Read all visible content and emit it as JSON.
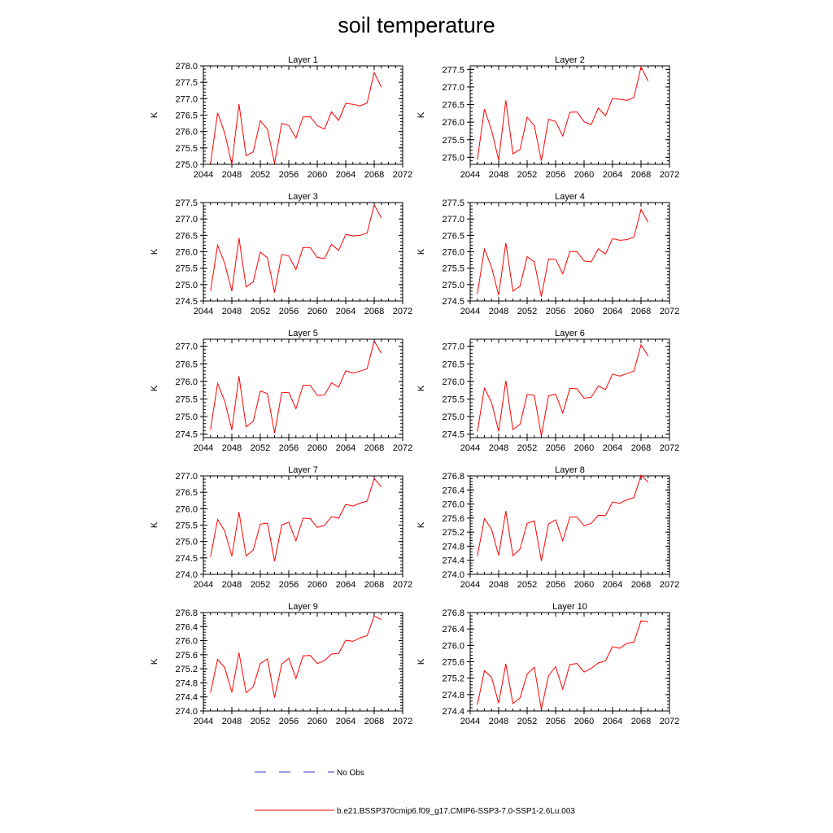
{
  "title": "soil temperature",
  "colors": {
    "series": "#ff0000",
    "obs": "#3b3bbf",
    "axis": "#000000"
  },
  "legend": {
    "obs_label": "No Obs",
    "model_label": "b.e21.BSSP370cmip6.f09_g17.CMIP6-SSP3-7.0-SSP1-2.6Lu.003"
  },
  "chart_data": [
    {
      "type": "line",
      "title": "Layer 1",
      "ylabel": "K",
      "xlim": [
        2044,
        2072
      ],
      "ylim": [
        275.0,
        278.0
      ],
      "x_ticks": [
        2044,
        2048,
        2052,
        2056,
        2060,
        2064,
        2068,
        2072
      ],
      "x_tick_labels": [
        "2044",
        "2048",
        "2052",
        "2056",
        "2060",
        "2064",
        "2068",
        "2072"
      ],
      "y_ticks": [
        275.0,
        275.5,
        276.0,
        276.5,
        277.0,
        277.5,
        278.0
      ],
      "y_tick_labels": [
        "275.0",
        "275.5",
        "276.0",
        "276.5",
        "277.0",
        "277.5",
        "278.0"
      ],
      "series": [
        {
          "x": [
            2045,
            2046,
            2047,
            2048,
            2049,
            2050,
            2051,
            2052,
            2053,
            2054,
            2055,
            2056,
            2057,
            2058,
            2059,
            2060,
            2061,
            2062,
            2063,
            2064,
            2065,
            2066,
            2067,
            2068,
            2069
          ],
          "values": [
            275.02,
            276.57,
            275.95,
            275.0,
            276.84,
            275.26,
            275.38,
            276.33,
            276.07,
            275.03,
            276.25,
            276.18,
            275.8,
            276.44,
            276.45,
            276.18,
            276.07,
            276.6,
            276.34,
            276.86,
            276.83,
            276.78,
            276.87,
            277.8,
            277.35
          ]
        }
      ]
    },
    {
      "type": "line",
      "title": "Layer 2",
      "ylabel": "K",
      "xlim": [
        2044,
        2072
      ],
      "ylim": [
        274.8,
        277.6
      ],
      "x_ticks": [
        2044,
        2048,
        2052,
        2056,
        2060,
        2064,
        2068,
        2072
      ],
      "x_tick_labels": [
        "2044",
        "2048",
        "2052",
        "2056",
        "2060",
        "2064",
        "2068",
        "2072"
      ],
      "y_ticks": [
        275.0,
        275.5,
        276.0,
        276.5,
        277.0,
        277.5
      ],
      "y_tick_labels": [
        "275.0",
        "275.5",
        "276.0",
        "276.5",
        "277.0",
        "277.5"
      ],
      "series": [
        {
          "x": [
            2045,
            2046,
            2047,
            2048,
            2049,
            2050,
            2051,
            2052,
            2053,
            2054,
            2055,
            2056,
            2057,
            2058,
            2059,
            2060,
            2061,
            2062,
            2063,
            2064,
            2065,
            2066,
            2067,
            2068,
            2069
          ],
          "values": [
            274.93,
            276.37,
            275.77,
            274.92,
            276.62,
            275.1,
            275.22,
            276.14,
            275.9,
            274.9,
            276.08,
            276.02,
            275.6,
            276.28,
            276.29,
            276.01,
            275.93,
            276.4,
            276.18,
            276.68,
            276.65,
            276.62,
            276.7,
            277.57,
            277.17
          ]
        }
      ]
    },
    {
      "type": "line",
      "title": "Layer 3",
      "ylabel": "K",
      "xlim": [
        2044,
        2072
      ],
      "ylim": [
        274.5,
        277.5
      ],
      "x_ticks": [
        2044,
        2048,
        2052,
        2056,
        2060,
        2064,
        2068,
        2072
      ],
      "x_tick_labels": [
        "2044",
        "2048",
        "2052",
        "2056",
        "2060",
        "2064",
        "2068",
        "2072"
      ],
      "y_ticks": [
        274.5,
        275.0,
        275.5,
        276.0,
        276.5,
        277.0,
        277.5
      ],
      "y_tick_labels": [
        "274.5",
        "275.0",
        "275.5",
        "276.0",
        "276.5",
        "277.0",
        "277.5"
      ],
      "series": [
        {
          "x": [
            2045,
            2046,
            2047,
            2048,
            2049,
            2050,
            2051,
            2052,
            2053,
            2054,
            2055,
            2056,
            2057,
            2058,
            2059,
            2060,
            2061,
            2062,
            2063,
            2064,
            2065,
            2066,
            2067,
            2068,
            2069
          ],
          "values": [
            274.8,
            276.2,
            275.64,
            274.8,
            276.42,
            274.93,
            275.08,
            275.99,
            275.81,
            274.76,
            275.92,
            275.87,
            275.46,
            276.13,
            276.13,
            275.83,
            275.79,
            276.23,
            276.04,
            276.53,
            276.48,
            276.5,
            276.57,
            277.43,
            277.03
          ]
        }
      ]
    },
    {
      "type": "line",
      "title": "Layer 4",
      "ylabel": "K",
      "xlim": [
        2044,
        2072
      ],
      "ylim": [
        274.5,
        277.5
      ],
      "x_ticks": [
        2044,
        2048,
        2052,
        2056,
        2060,
        2064,
        2068,
        2072
      ],
      "x_tick_labels": [
        "2044",
        "2048",
        "2052",
        "2056",
        "2060",
        "2064",
        "2068",
        "2072"
      ],
      "y_ticks": [
        274.5,
        275.0,
        275.5,
        276.0,
        276.5,
        277.0,
        277.5
      ],
      "y_tick_labels": [
        "274.5",
        "275.0",
        "275.5",
        "276.0",
        "276.5",
        "277.0",
        "277.5"
      ],
      "series": [
        {
          "x": [
            2045,
            2046,
            2047,
            2048,
            2049,
            2050,
            2051,
            2052,
            2053,
            2054,
            2055,
            2056,
            2057,
            2058,
            2059,
            2060,
            2061,
            2062,
            2063,
            2064,
            2065,
            2066,
            2067,
            2068,
            2069
          ],
          "values": [
            274.72,
            276.08,
            275.53,
            274.68,
            276.27,
            274.8,
            274.95,
            275.85,
            275.69,
            274.63,
            275.78,
            275.77,
            275.33,
            276.01,
            276.0,
            275.72,
            275.69,
            276.09,
            275.93,
            276.4,
            276.35,
            276.37,
            276.45,
            277.29,
            276.9
          ]
        }
      ]
    },
    {
      "type": "line",
      "title": "Layer 5",
      "ylabel": "K",
      "xlim": [
        2044,
        2072
      ],
      "ylim": [
        274.4,
        277.2
      ],
      "x_ticks": [
        2044,
        2048,
        2052,
        2056,
        2060,
        2064,
        2068,
        2072
      ],
      "x_tick_labels": [
        "2044",
        "2048",
        "2052",
        "2056",
        "2060",
        "2064",
        "2068",
        "2072"
      ],
      "y_ticks": [
        274.5,
        275.0,
        275.5,
        276.0,
        276.5,
        277.0
      ],
      "y_tick_labels": [
        "274.5",
        "275.0",
        "275.5",
        "276.0",
        "276.5",
        "277.0"
      ],
      "series": [
        {
          "x": [
            2045,
            2046,
            2047,
            2048,
            2049,
            2050,
            2051,
            2052,
            2053,
            2054,
            2055,
            2056,
            2057,
            2058,
            2059,
            2060,
            2061,
            2062,
            2063,
            2064,
            2065,
            2066,
            2067,
            2068,
            2069
          ],
          "values": [
            274.63,
            275.94,
            275.43,
            274.62,
            276.15,
            274.71,
            274.86,
            275.73,
            275.65,
            274.53,
            275.68,
            275.69,
            275.22,
            275.89,
            275.89,
            275.6,
            275.61,
            275.96,
            275.84,
            276.3,
            276.24,
            276.29,
            276.36,
            277.15,
            276.8
          ]
        }
      ]
    },
    {
      "type": "line",
      "title": "Layer 6",
      "ylabel": "K",
      "xlim": [
        2044,
        2072
      ],
      "ylim": [
        274.4,
        277.2
      ],
      "x_ticks": [
        2044,
        2048,
        2052,
        2056,
        2060,
        2064,
        2068,
        2072
      ],
      "x_tick_labels": [
        "2044",
        "2048",
        "2052",
        "2056",
        "2060",
        "2064",
        "2068",
        "2072"
      ],
      "y_ticks": [
        274.5,
        275.0,
        275.5,
        276.0,
        276.5,
        277.0
      ],
      "y_tick_labels": [
        "274.5",
        "275.0",
        "275.5",
        "276.0",
        "276.5",
        "277.0"
      ],
      "series": [
        {
          "x": [
            2045,
            2046,
            2047,
            2048,
            2049,
            2050,
            2051,
            2052,
            2053,
            2054,
            2055,
            2056,
            2057,
            2058,
            2059,
            2060,
            2061,
            2062,
            2063,
            2064,
            2065,
            2066,
            2067,
            2068,
            2069
          ],
          "values": [
            274.57,
            275.81,
            275.4,
            274.58,
            276.02,
            274.63,
            274.78,
            275.63,
            275.6,
            274.45,
            275.59,
            275.64,
            275.1,
            275.8,
            275.79,
            275.52,
            275.55,
            275.87,
            275.77,
            276.21,
            276.15,
            276.22,
            276.29,
            277.04,
            276.72
          ]
        }
      ]
    },
    {
      "type": "line",
      "title": "Layer 7",
      "ylabel": "K",
      "xlim": [
        2044,
        2072
      ],
      "ylim": [
        274.0,
        277.0
      ],
      "x_ticks": [
        2044,
        2048,
        2052,
        2056,
        2060,
        2064,
        2068,
        2072
      ],
      "x_tick_labels": [
        "2044",
        "2048",
        "2052",
        "2056",
        "2060",
        "2064",
        "2068",
        "2072"
      ],
      "y_ticks": [
        274.0,
        274.5,
        275.0,
        275.5,
        276.0,
        276.5,
        277.0
      ],
      "y_tick_labels": [
        "274.0",
        "274.5",
        "275.0",
        "275.5",
        "276.0",
        "276.5",
        "277.0"
      ],
      "series": [
        {
          "x": [
            2045,
            2046,
            2047,
            2048,
            2049,
            2050,
            2051,
            2052,
            2053,
            2054,
            2055,
            2056,
            2057,
            2058,
            2059,
            2060,
            2061,
            2062,
            2063,
            2064,
            2065,
            2066,
            2067,
            2068,
            2069
          ],
          "values": [
            274.53,
            275.67,
            275.32,
            274.55,
            275.9,
            274.56,
            274.74,
            275.53,
            275.56,
            274.4,
            275.5,
            275.59,
            275.02,
            275.71,
            275.7,
            275.43,
            275.49,
            275.76,
            275.71,
            276.13,
            276.08,
            276.17,
            276.23,
            276.92,
            276.66
          ]
        }
      ]
    },
    {
      "type": "line",
      "title": "Layer 8",
      "ylabel": "K",
      "xlim": [
        2044,
        2072
      ],
      "ylim": [
        274.0,
        276.8
      ],
      "x_ticks": [
        2044,
        2048,
        2052,
        2056,
        2060,
        2064,
        2068,
        2072
      ],
      "x_tick_labels": [
        "2044",
        "2048",
        "2052",
        "2056",
        "2060",
        "2064",
        "2068",
        "2072"
      ],
      "y_ticks": [
        274.0,
        274.4,
        274.8,
        275.2,
        275.6,
        276.0,
        276.4,
        276.8
      ],
      "y_tick_labels": [
        "274.0",
        "274.4",
        "274.8",
        "275.2",
        "275.6",
        "276.0",
        "276.4",
        "276.8"
      ],
      "series": [
        {
          "x": [
            2045,
            2046,
            2047,
            2048,
            2049,
            2050,
            2051,
            2052,
            2053,
            2054,
            2055,
            2056,
            2057,
            2058,
            2059,
            2060,
            2061,
            2062,
            2063,
            2064,
            2065,
            2066,
            2067,
            2068,
            2069
          ],
          "values": [
            274.52,
            275.58,
            275.28,
            274.54,
            275.8,
            274.53,
            274.72,
            275.45,
            275.52,
            274.38,
            275.43,
            275.55,
            274.95,
            275.63,
            275.63,
            275.38,
            275.45,
            275.68,
            275.67,
            276.06,
            276.02,
            276.12,
            276.18,
            276.82,
            276.62
          ]
        }
      ]
    },
    {
      "type": "line",
      "title": "Layer 9",
      "ylabel": "K",
      "xlim": [
        2044,
        2072
      ],
      "ylim": [
        274.0,
        276.8
      ],
      "x_ticks": [
        2044,
        2048,
        2052,
        2056,
        2060,
        2064,
        2068,
        2072
      ],
      "x_tick_labels": [
        "2044",
        "2048",
        "2052",
        "2056",
        "2060",
        "2064",
        "2068",
        "2072"
      ],
      "y_ticks": [
        274.0,
        274.4,
        274.8,
        275.2,
        275.6,
        276.0,
        276.4,
        276.8
      ],
      "y_tick_labels": [
        "274.0",
        "274.4",
        "274.8",
        "275.2",
        "275.6",
        "276.0",
        "276.4",
        "276.8"
      ],
      "series": [
        {
          "x": [
            2045,
            2046,
            2047,
            2048,
            2049,
            2050,
            2051,
            2052,
            2053,
            2054,
            2055,
            2056,
            2057,
            2058,
            2059,
            2060,
            2061,
            2062,
            2063,
            2064,
            2065,
            2066,
            2067,
            2068,
            2069
          ],
          "values": [
            274.52,
            275.47,
            275.23,
            274.53,
            275.66,
            274.52,
            274.69,
            275.35,
            275.48,
            274.38,
            275.33,
            275.5,
            274.92,
            275.57,
            275.58,
            275.35,
            275.43,
            275.62,
            275.64,
            276.01,
            275.98,
            276.08,
            276.14,
            276.7,
            276.6
          ]
        }
      ]
    },
    {
      "type": "line",
      "title": "Layer 10",
      "ylabel": "K",
      "xlim": [
        2044,
        2072
      ],
      "ylim": [
        274.4,
        276.8
      ],
      "x_ticks": [
        2044,
        2048,
        2052,
        2056,
        2060,
        2064,
        2068,
        2072
      ],
      "x_tick_labels": [
        "2044",
        "2048",
        "2052",
        "2056",
        "2060",
        "2064",
        "2068",
        "2072"
      ],
      "y_ticks": [
        274.4,
        274.8,
        275.2,
        275.6,
        276.0,
        276.4,
        276.8
      ],
      "y_tick_labels": [
        "274.4",
        "274.8",
        "275.2",
        "275.6",
        "276.0",
        "276.4",
        "276.8"
      ],
      "series": [
        {
          "x": [
            2045,
            2046,
            2047,
            2048,
            2049,
            2050,
            2051,
            2052,
            2053,
            2054,
            2055,
            2056,
            2057,
            2058,
            2059,
            2060,
            2061,
            2062,
            2063,
            2064,
            2065,
            2066,
            2067,
            2068,
            2069
          ],
          "values": [
            274.55,
            275.38,
            275.22,
            274.59,
            275.55,
            274.58,
            274.72,
            275.3,
            275.47,
            274.44,
            275.26,
            275.48,
            274.93,
            275.53,
            275.56,
            275.35,
            275.44,
            275.57,
            275.62,
            275.97,
            275.93,
            276.05,
            276.08,
            276.6,
            276.57
          ]
        }
      ]
    }
  ]
}
